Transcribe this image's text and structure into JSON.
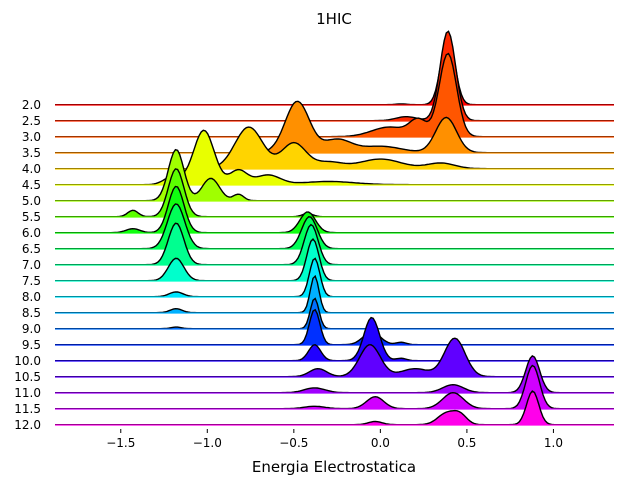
{
  "chart_data": {
    "type": "area",
    "title": "1HIC",
    "xlabel": "Energia Electrostatica",
    "ylabel": "",
    "xlim": [
      -1.88,
      1.35
    ],
    "x_ticks": [
      -1.5,
      -1.0,
      -0.5,
      0.0,
      0.5,
      1.0
    ],
    "x_tick_labels": [
      "−1.5",
      "−1.0",
      "−0.5",
      "0.0",
      "0.5",
      "1.0"
    ],
    "style": "ridgeline (joyplot), stacked kernel-density curves per group, hsv colormap",
    "series": [
      {
        "label": "2.0",
        "color": "#ff0000",
        "peaks": [
          [
            0.12,
            0.03,
            0.05
          ],
          [
            0.39,
            0.04,
            4.3
          ]
        ]
      },
      {
        "label": "2.5",
        "color": "#ff2a00",
        "peaks": [
          [
            0.15,
            0.06,
            0.25
          ],
          [
            0.39,
            0.045,
            5.6
          ]
        ]
      },
      {
        "label": "3.0",
        "color": "#ff5600",
        "peaks": [
          [
            0.05,
            0.1,
            0.6
          ],
          [
            0.22,
            0.05,
            1.0
          ],
          [
            0.39,
            0.05,
            5.2
          ]
        ]
      },
      {
        "label": "3.5",
        "color": "#ff9000",
        "peaks": [
          [
            -0.48,
            0.07,
            3.2
          ],
          [
            -0.25,
            0.08,
            0.8
          ],
          [
            0.0,
            0.12,
            0.4
          ],
          [
            0.38,
            0.06,
            2.2
          ]
        ]
      },
      {
        "label": "4.0",
        "color": "#ffd400",
        "peaks": [
          [
            -0.76,
            0.08,
            2.6
          ],
          [
            -0.5,
            0.07,
            1.6
          ],
          [
            -0.3,
            0.08,
            0.4
          ],
          [
            0.0,
            0.12,
            0.6
          ],
          [
            0.35,
            0.08,
            0.35
          ]
        ]
      },
      {
        "label": "4.5",
        "color": "#e8ff00",
        "peaks": [
          [
            -1.2,
            0.05,
            0.5
          ],
          [
            -1.02,
            0.06,
            3.4
          ],
          [
            -0.82,
            0.05,
            0.9
          ],
          [
            -0.65,
            0.07,
            0.6
          ],
          [
            -0.3,
            0.15,
            0.2
          ]
        ]
      },
      {
        "label": "5.0",
        "color": "#a0ff00",
        "peaks": [
          [
            -1.18,
            0.045,
            3.2
          ],
          [
            -0.98,
            0.05,
            1.4
          ],
          [
            -0.82,
            0.03,
            0.4
          ]
        ]
      },
      {
        "label": "5.5",
        "color": "#5cff00",
        "peaks": [
          [
            -1.43,
            0.03,
            0.4
          ],
          [
            -1.18,
            0.045,
            3.0
          ],
          [
            -0.42,
            0.03,
            0.2
          ]
        ]
      },
      {
        "label": "6.0",
        "color": "#10ff10",
        "peaks": [
          [
            -1.43,
            0.04,
            0.25
          ],
          [
            -1.18,
            0.045,
            2.9
          ],
          [
            -0.42,
            0.045,
            1.3
          ]
        ]
      },
      {
        "label": "6.5",
        "color": "#00ff58",
        "peaks": [
          [
            -1.18,
            0.05,
            2.8
          ],
          [
            -0.41,
            0.045,
            2.0
          ]
        ]
      },
      {
        "label": "7.0",
        "color": "#00ff90",
        "peaks": [
          [
            -1.18,
            0.045,
            2.6
          ],
          [
            -0.4,
            0.04,
            2.5
          ]
        ]
      },
      {
        "label": "7.5",
        "color": "#00ffcc",
        "peaks": [
          [
            -1.18,
            0.045,
            1.4
          ],
          [
            -0.39,
            0.035,
            2.6
          ]
        ]
      },
      {
        "label": "8.0",
        "color": "#00e6ff",
        "peaks": [
          [
            -1.18,
            0.04,
            0.3
          ],
          [
            -0.38,
            0.03,
            2.4
          ]
        ]
      },
      {
        "label": "8.5",
        "color": "#00b0ff",
        "peaks": [
          [
            -1.18,
            0.035,
            0.25
          ],
          [
            -0.38,
            0.025,
            2.3
          ]
        ]
      },
      {
        "label": "9.0",
        "color": "#0070ff",
        "peaks": [
          [
            -1.18,
            0.03,
            0.1
          ],
          [
            -0.38,
            0.025,
            1.9
          ]
        ]
      },
      {
        "label": "9.5",
        "color": "#0030ff",
        "peaks": [
          [
            -0.38,
            0.03,
            2.2
          ],
          [
            -0.05,
            0.05,
            0.8
          ],
          [
            0.12,
            0.03,
            0.15
          ]
        ]
      },
      {
        "label": "10.0",
        "color": "#2000ff",
        "peaks": [
          [
            -0.38,
            0.035,
            1.0
          ],
          [
            -0.05,
            0.045,
            2.7
          ],
          [
            0.12,
            0.03,
            0.15
          ]
        ]
      },
      {
        "label": "10.5",
        "color": "#6000ff",
        "peaks": [
          [
            -0.36,
            0.05,
            0.5
          ],
          [
            -0.06,
            0.06,
            2.0
          ],
          [
            0.2,
            0.08,
            0.5
          ],
          [
            0.43,
            0.06,
            2.4
          ]
        ]
      },
      {
        "label": "11.0",
        "color": "#a000ff",
        "peaks": [
          [
            -0.38,
            0.06,
            0.3
          ],
          [
            0.42,
            0.06,
            0.5
          ],
          [
            0.88,
            0.04,
            2.3
          ]
        ]
      },
      {
        "label": "11.5",
        "color": "#d000ff",
        "peaks": [
          [
            -0.38,
            0.06,
            0.15
          ],
          [
            -0.03,
            0.05,
            0.75
          ],
          [
            0.42,
            0.06,
            1.0
          ],
          [
            0.88,
            0.04,
            2.7
          ]
        ]
      },
      {
        "label": "12.0",
        "color": "#ff00ea",
        "peaks": [
          [
            -0.03,
            0.04,
            0.2
          ],
          [
            0.38,
            0.05,
            0.7
          ],
          [
            0.46,
            0.04,
            0.6
          ],
          [
            0.88,
            0.035,
            2.1
          ]
        ]
      }
    ]
  }
}
